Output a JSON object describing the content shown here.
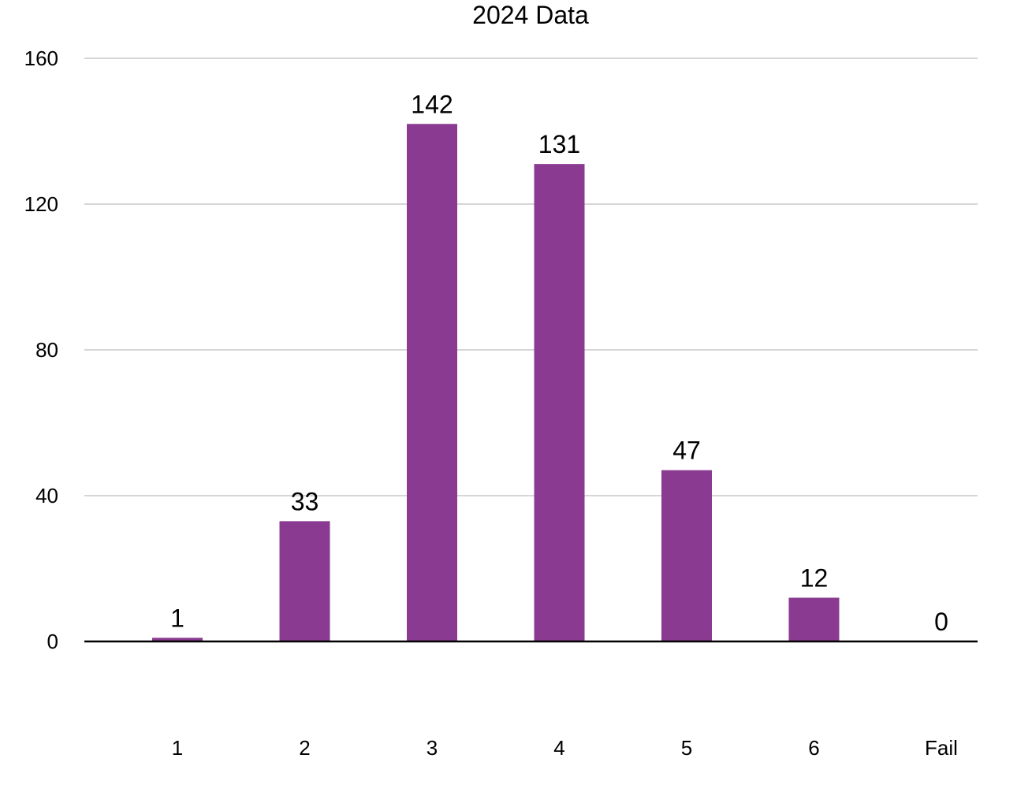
{
  "chart_data": {
    "type": "bar",
    "title": "2024 Data",
    "xlabel": "",
    "ylabel": "",
    "categories": [
      "1",
      "2",
      "3",
      "4",
      "5",
      "6",
      "Fail"
    ],
    "values": [
      1,
      33,
      142,
      131,
      47,
      12,
      0
    ],
    "ylim": [
      0,
      160
    ],
    "yticks": [
      0,
      40,
      80,
      120,
      160
    ],
    "grid": true,
    "legend": "none",
    "bar_color": "#8a3b91"
  }
}
